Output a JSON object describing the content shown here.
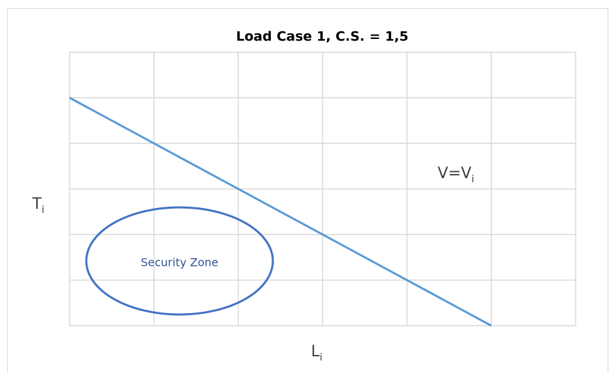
{
  "chart_data": {
    "type": "line",
    "title": "Load Case 1, C.S. = 1,5",
    "x_label": {
      "base": "L",
      "sub": "i"
    },
    "y_label": {
      "base": "T",
      "sub": "i"
    },
    "series": [
      {
        "name": {
          "base": "V=V",
          "sub": "i"
        },
        "color": "#5b9bd5",
        "x": [
          0,
          5
        ],
        "values": [
          5,
          0
        ]
      }
    ],
    "annotation": "Security Zone",
    "xlim": [
      0,
      6
    ],
    "ylim": [
      0,
      6
    ],
    "xticks": [
      0,
      1,
      2,
      3,
      4,
      5,
      6
    ],
    "yticks": [
      0,
      1,
      2,
      3,
      4,
      5,
      6
    ],
    "tick_labels": false,
    "grid": true
  }
}
